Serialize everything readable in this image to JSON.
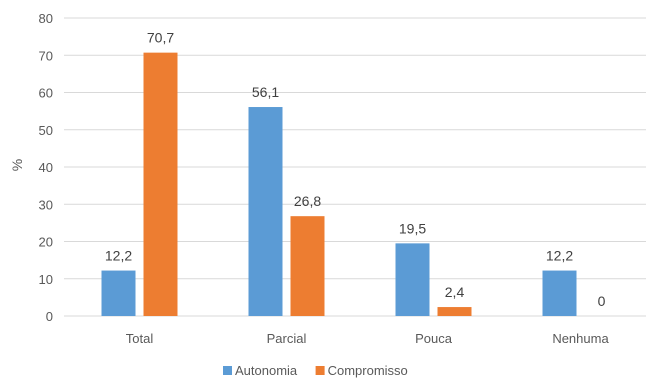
{
  "chart_data": {
    "type": "bar",
    "categories": [
      "Total",
      "Parcial",
      "Pouca",
      "Nenhuma"
    ],
    "series": [
      {
        "name": "Autonomia",
        "values": [
          12.2,
          56.1,
          19.5,
          12.2
        ],
        "color": "#5B9BD5"
      },
      {
        "name": "Compromisso",
        "values": [
          70.7,
          26.8,
          2.4,
          0
        ],
        "color": "#ED7D31"
      }
    ],
    "data_labels": [
      [
        "12,2",
        "56,1",
        "19,5",
        "12,2"
      ],
      [
        "70,7",
        "26,8",
        "2,4",
        "0"
      ]
    ],
    "yticks": [
      0,
      10,
      20,
      30,
      40,
      50,
      60,
      70,
      80
    ],
    "ylim": [
      0,
      80
    ],
    "title": "",
    "xlabel": "",
    "ylabel": "%",
    "grid": true,
    "gridline_color": "#D9D9D9",
    "legend_position": "bottom"
  }
}
